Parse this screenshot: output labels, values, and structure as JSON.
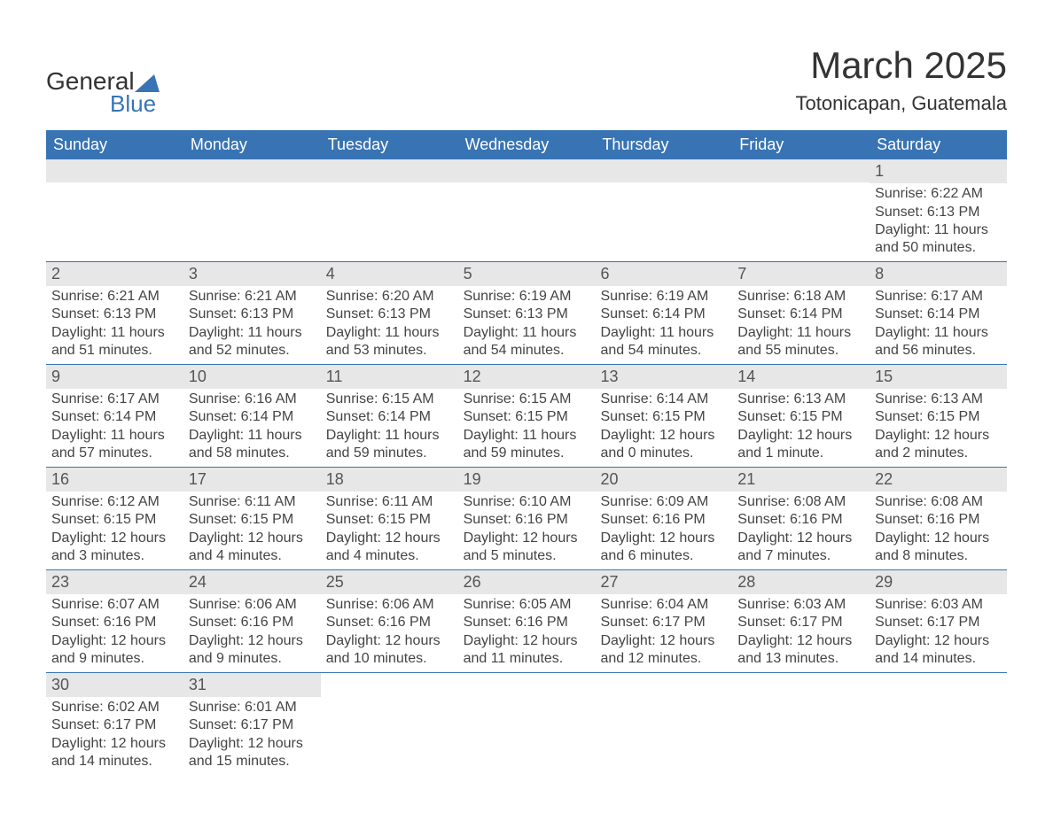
{
  "logo": {
    "line1": "General",
    "line2": "Blue"
  },
  "title": "March 2025",
  "subtitle": "Totonicapan, Guatemala",
  "colors": {
    "header_bg": "#3874b4",
    "header_text": "#ffffff",
    "daynum_bg": "#e7e7e7",
    "daynum_text": "#555555",
    "row_border": "#3874b4",
    "body_text": "#444444",
    "title_text": "#333333",
    "logo_blue": "#3874b4"
  },
  "weekdays": [
    "Sunday",
    "Monday",
    "Tuesday",
    "Wednesday",
    "Thursday",
    "Friday",
    "Saturday"
  ],
  "labels": {
    "sunrise": "Sunrise:",
    "sunset": "Sunset:",
    "daylight": "Daylight:"
  },
  "grid": [
    [
      null,
      null,
      null,
      null,
      null,
      null,
      {
        "d": "1",
        "sr": "6:22 AM",
        "ss": "6:13 PM",
        "dl": "11 hours and 50 minutes."
      }
    ],
    [
      {
        "d": "2",
        "sr": "6:21 AM",
        "ss": "6:13 PM",
        "dl": "11 hours and 51 minutes."
      },
      {
        "d": "3",
        "sr": "6:21 AM",
        "ss": "6:13 PM",
        "dl": "11 hours and 52 minutes."
      },
      {
        "d": "4",
        "sr": "6:20 AM",
        "ss": "6:13 PM",
        "dl": "11 hours and 53 minutes."
      },
      {
        "d": "5",
        "sr": "6:19 AM",
        "ss": "6:13 PM",
        "dl": "11 hours and 54 minutes."
      },
      {
        "d": "6",
        "sr": "6:19 AM",
        "ss": "6:14 PM",
        "dl": "11 hours and 54 minutes."
      },
      {
        "d": "7",
        "sr": "6:18 AM",
        "ss": "6:14 PM",
        "dl": "11 hours and 55 minutes."
      },
      {
        "d": "8",
        "sr": "6:17 AM",
        "ss": "6:14 PM",
        "dl": "11 hours and 56 minutes."
      }
    ],
    [
      {
        "d": "9",
        "sr": "6:17 AM",
        "ss": "6:14 PM",
        "dl": "11 hours and 57 minutes."
      },
      {
        "d": "10",
        "sr": "6:16 AM",
        "ss": "6:14 PM",
        "dl": "11 hours and 58 minutes."
      },
      {
        "d": "11",
        "sr": "6:15 AM",
        "ss": "6:14 PM",
        "dl": "11 hours and 59 minutes."
      },
      {
        "d": "12",
        "sr": "6:15 AM",
        "ss": "6:15 PM",
        "dl": "11 hours and 59 minutes."
      },
      {
        "d": "13",
        "sr": "6:14 AM",
        "ss": "6:15 PM",
        "dl": "12 hours and 0 minutes."
      },
      {
        "d": "14",
        "sr": "6:13 AM",
        "ss": "6:15 PM",
        "dl": "12 hours and 1 minute."
      },
      {
        "d": "15",
        "sr": "6:13 AM",
        "ss": "6:15 PM",
        "dl": "12 hours and 2 minutes."
      }
    ],
    [
      {
        "d": "16",
        "sr": "6:12 AM",
        "ss": "6:15 PM",
        "dl": "12 hours and 3 minutes."
      },
      {
        "d": "17",
        "sr": "6:11 AM",
        "ss": "6:15 PM",
        "dl": "12 hours and 4 minutes."
      },
      {
        "d": "18",
        "sr": "6:11 AM",
        "ss": "6:15 PM",
        "dl": "12 hours and 4 minutes."
      },
      {
        "d": "19",
        "sr": "6:10 AM",
        "ss": "6:16 PM",
        "dl": "12 hours and 5 minutes."
      },
      {
        "d": "20",
        "sr": "6:09 AM",
        "ss": "6:16 PM",
        "dl": "12 hours and 6 minutes."
      },
      {
        "d": "21",
        "sr": "6:08 AM",
        "ss": "6:16 PM",
        "dl": "12 hours and 7 minutes."
      },
      {
        "d": "22",
        "sr": "6:08 AM",
        "ss": "6:16 PM",
        "dl": "12 hours and 8 minutes."
      }
    ],
    [
      {
        "d": "23",
        "sr": "6:07 AM",
        "ss": "6:16 PM",
        "dl": "12 hours and 9 minutes."
      },
      {
        "d": "24",
        "sr": "6:06 AM",
        "ss": "6:16 PM",
        "dl": "12 hours and 9 minutes."
      },
      {
        "d": "25",
        "sr": "6:06 AM",
        "ss": "6:16 PM",
        "dl": "12 hours and 10 minutes."
      },
      {
        "d": "26",
        "sr": "6:05 AM",
        "ss": "6:16 PM",
        "dl": "12 hours and 11 minutes."
      },
      {
        "d": "27",
        "sr": "6:04 AM",
        "ss": "6:17 PM",
        "dl": "12 hours and 12 minutes."
      },
      {
        "d": "28",
        "sr": "6:03 AM",
        "ss": "6:17 PM",
        "dl": "12 hours and 13 minutes."
      },
      {
        "d": "29",
        "sr": "6:03 AM",
        "ss": "6:17 PM",
        "dl": "12 hours and 14 minutes."
      }
    ],
    [
      {
        "d": "30",
        "sr": "6:02 AM",
        "ss": "6:17 PM",
        "dl": "12 hours and 14 minutes."
      },
      {
        "d": "31",
        "sr": "6:01 AM",
        "ss": "6:17 PM",
        "dl": "12 hours and 15 minutes."
      },
      null,
      null,
      null,
      null,
      null
    ]
  ]
}
